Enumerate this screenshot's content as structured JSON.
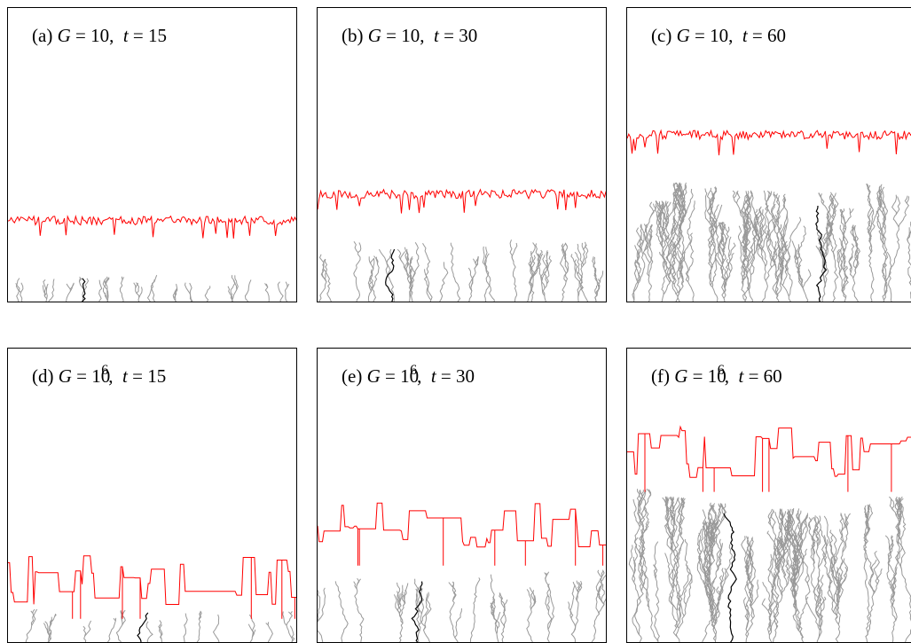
{
  "panels": [
    {
      "id": "a",
      "prefix": "(a)",
      "G_base": "10",
      "G_exp": "",
      "t_value": "15",
      "eq_G": "G = ",
      "sep": ",",
      "eq_t": "t = ",
      "front_level": 0.28,
      "front_roughness": "low",
      "tree_height": 0.1,
      "front_color": "#ff0000",
      "tree_color": "#999999",
      "path_color": "#000000"
    },
    {
      "id": "b",
      "prefix": "(b)",
      "G_base": "10",
      "G_exp": "",
      "t_value": "30",
      "eq_G": "G = ",
      "sep": ",",
      "eq_t": "t = ",
      "front_level": 0.37,
      "front_roughness": "low",
      "tree_height": 0.22,
      "front_color": "#ff0000",
      "tree_color": "#999999",
      "path_color": "#000000"
    },
    {
      "id": "c",
      "prefix": "(c)",
      "G_base": "10",
      "G_exp": "",
      "t_value": "60",
      "eq_G": "G = ",
      "sep": ",",
      "eq_t": "t = ",
      "front_level": 0.57,
      "front_roughness": "low",
      "tree_height": 0.41,
      "front_color": "#ff0000",
      "tree_color": "#999999",
      "path_color": "#000000"
    },
    {
      "id": "d",
      "prefix": "(d)",
      "G_base": "10",
      "G_exp": "6",
      "t_value": "15",
      "eq_G": "G = ",
      "sep": ",",
      "eq_t": "t = ",
      "front_level": 0.22,
      "front_roughness": "high",
      "tree_height": 0.12,
      "front_color": "#ff0000",
      "tree_color": "#999999",
      "path_color": "#000000"
    },
    {
      "id": "e",
      "prefix": "(e)",
      "G_base": "10",
      "G_exp": "6",
      "t_value": "30",
      "eq_G": "G = ",
      "sep": ",",
      "eq_t": "t = ",
      "front_level": 0.4,
      "front_roughness": "high",
      "tree_height": 0.26,
      "front_color": "#ff0000",
      "tree_color": "#999999",
      "path_color": "#000000"
    },
    {
      "id": "f",
      "prefix": "(f)",
      "G_base": "10",
      "G_exp": "6",
      "t_value": "60",
      "eq_G": "G = ",
      "sep": ",",
      "eq_t": "t = ",
      "front_level": 0.65,
      "front_roughness": "high",
      "tree_height": 0.55,
      "front_color": "#ff0000",
      "tree_color": "#999999",
      "path_color": "#000000"
    }
  ]
}
